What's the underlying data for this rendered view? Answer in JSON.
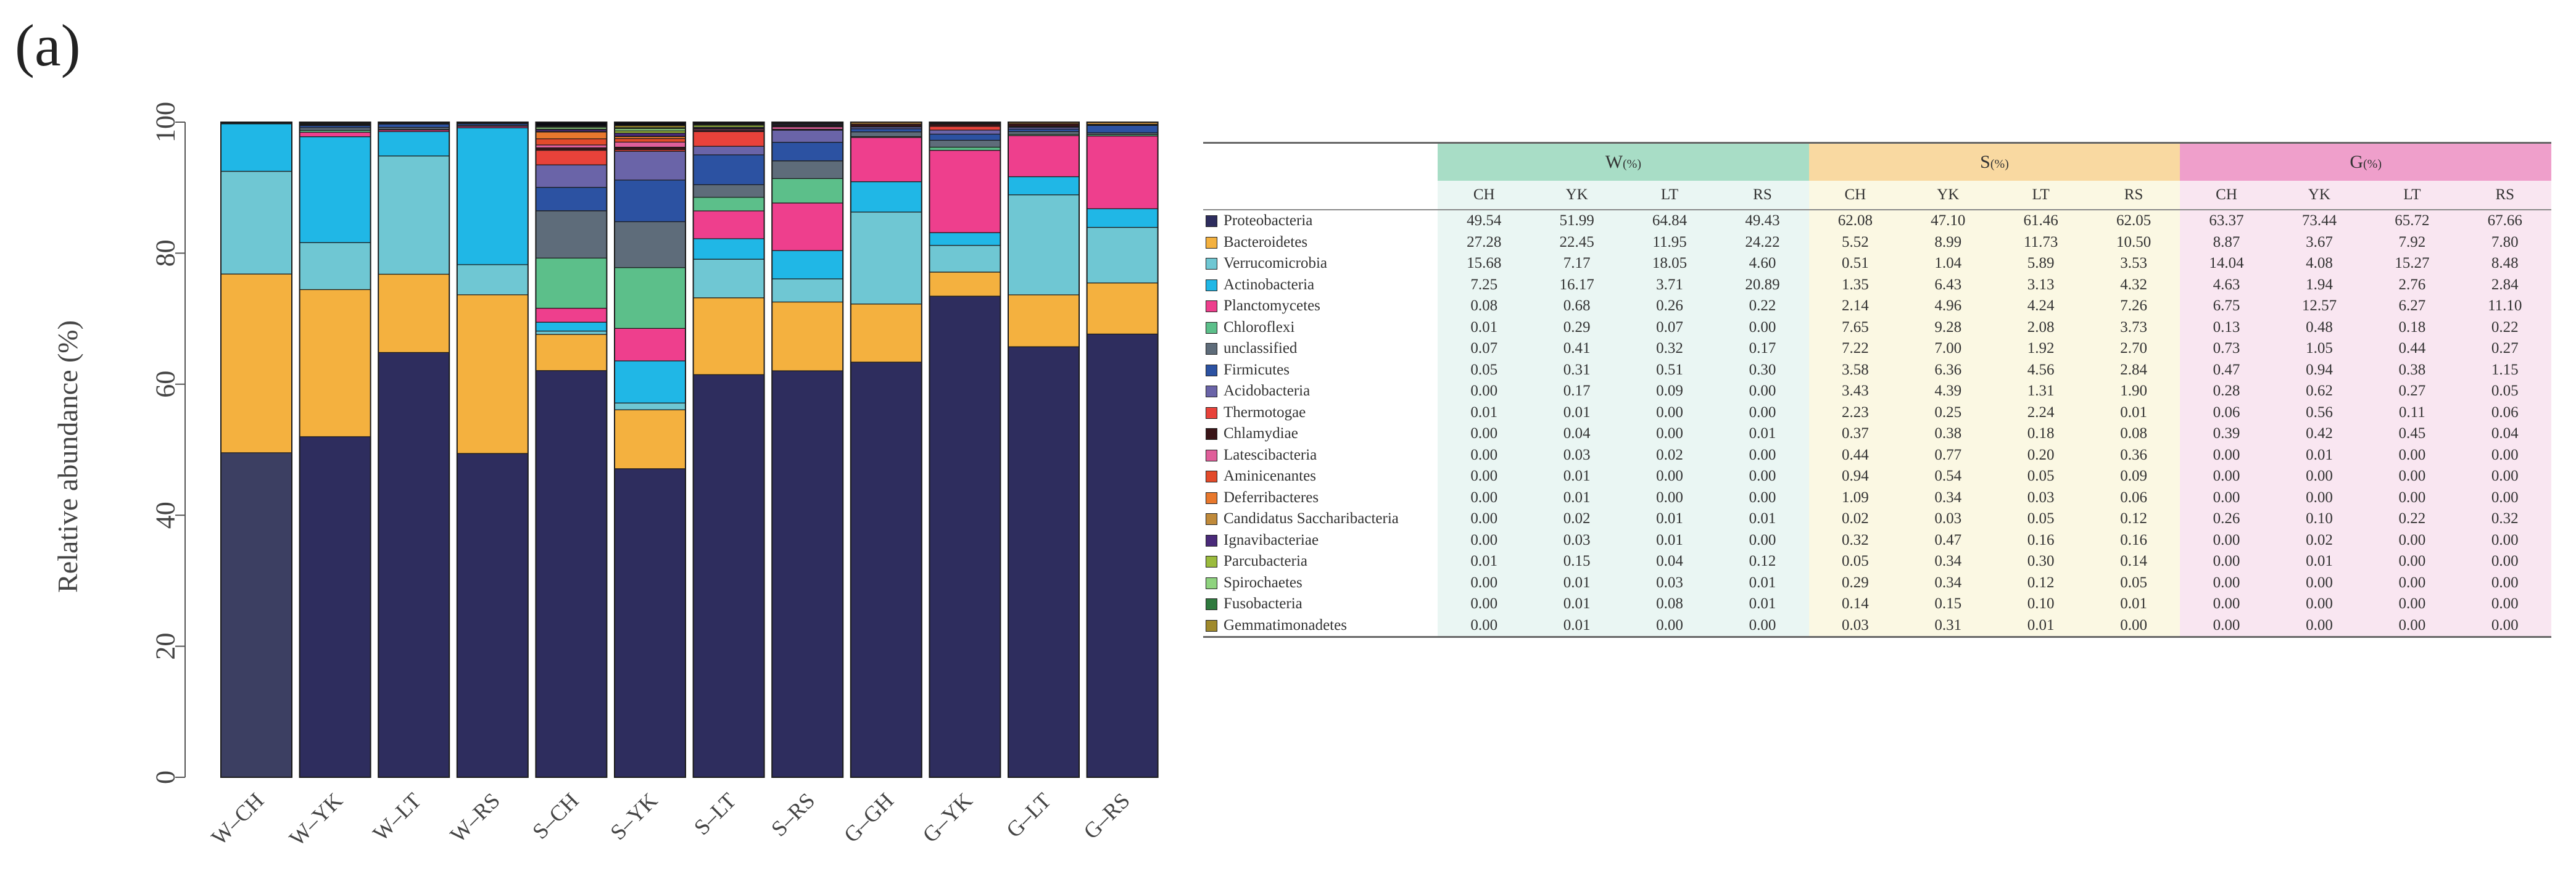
{
  "panel_label": "(a)",
  "chart_data": {
    "type": "bar",
    "stacked": true,
    "title": "",
    "xlabel": "",
    "ylabel": "Relative abundance (%)",
    "ylim": [
      0,
      100
    ],
    "yticks": [
      "0",
      "20",
      "40",
      "60",
      "80",
      "100"
    ],
    "categories": [
      "W–CH",
      "W–YK",
      "W–LT",
      "W–RS",
      "S–CH",
      "S–YK",
      "S–LT",
      "S–RS",
      "G–GH",
      "G–YK",
      "G–LT",
      "G–RS"
    ],
    "first_bar_base_color": "#3c3f62",
    "series": [
      {
        "name": "Proteobacteria",
        "color": "#2e2d5e",
        "values": [
          49.54,
          51.99,
          64.84,
          49.43,
          62.08,
          47.1,
          61.46,
          62.05,
          63.37,
          73.44,
          65.72,
          67.66
        ]
      },
      {
        "name": "Bacteroidetes",
        "color": "#f4b13f",
        "values": [
          27.28,
          22.45,
          11.95,
          24.22,
          5.52,
          8.99,
          11.73,
          10.5,
          8.87,
          3.67,
          7.92,
          7.8
        ]
      },
      {
        "name": "Verrucomicrobia",
        "color": "#6fc7d3",
        "values": [
          15.68,
          7.17,
          18.05,
          4.6,
          0.51,
          1.04,
          5.89,
          3.53,
          14.04,
          4.08,
          15.27,
          8.48
        ]
      },
      {
        "name": "Actinobacteria",
        "color": "#20b7e6",
        "values": [
          7.25,
          16.17,
          3.71,
          20.89,
          1.35,
          6.43,
          3.13,
          4.32,
          4.63,
          1.94,
          2.76,
          2.84
        ]
      },
      {
        "name": "Planctomycetes",
        "color": "#ee3f8d",
        "values": [
          0.08,
          0.68,
          0.26,
          0.22,
          2.14,
          4.96,
          4.24,
          7.26,
          6.75,
          12.57,
          6.27,
          11.1
        ]
      },
      {
        "name": "Chloroflexi",
        "color": "#5cbf8a",
        "values": [
          0.01,
          0.29,
          0.07,
          0.0,
          7.65,
          9.28,
          2.08,
          3.73,
          0.13,
          0.48,
          0.18,
          0.22
        ]
      },
      {
        "name": "unclassified",
        "color": "#5e6c7a",
        "values": [
          0.07,
          0.41,
          0.32,
          0.17,
          7.22,
          7.0,
          1.92,
          2.7,
          0.73,
          1.05,
          0.44,
          0.27
        ]
      },
      {
        "name": "Firmicutes",
        "color": "#2c52a2",
        "values": [
          0.05,
          0.31,
          0.51,
          0.3,
          3.58,
          6.36,
          4.56,
          2.84,
          0.47,
          0.94,
          0.38,
          1.15
        ]
      },
      {
        "name": "Acidobacteria",
        "color": "#6a64a8",
        "values": [
          0.0,
          0.17,
          0.09,
          0.0,
          3.43,
          4.39,
          1.31,
          1.9,
          0.28,
          0.62,
          0.27,
          0.05
        ]
      },
      {
        "name": "Thermotogae",
        "color": "#e8423a",
        "values": [
          0.01,
          0.01,
          0.0,
          0.0,
          2.23,
          0.25,
          2.24,
          0.01,
          0.06,
          0.56,
          0.11,
          0.06
        ]
      },
      {
        "name": "Chlamydiae",
        "color": "#3a1518",
        "values": [
          0.0,
          0.04,
          0.0,
          0.01,
          0.37,
          0.38,
          0.18,
          0.08,
          0.39,
          0.42,
          0.45,
          0.04
        ]
      },
      {
        "name": "Latescibacteria",
        "color": "#e05f9a",
        "values": [
          0.0,
          0.03,
          0.02,
          0.0,
          0.44,
          0.77,
          0.2,
          0.36,
          0.0,
          0.01,
          0.0,
          0.0
        ]
      },
      {
        "name": "Aminicenantes",
        "color": "#e34b2b",
        "values": [
          0.0,
          0.01,
          0.0,
          0.0,
          0.94,
          0.54,
          0.05,
          0.09,
          0.0,
          0.0,
          0.0,
          0.0
        ]
      },
      {
        "name": "Deferribacteres",
        "color": "#e8782d",
        "values": [
          0.0,
          0.01,
          0.0,
          0.0,
          1.09,
          0.34,
          0.03,
          0.06,
          0.0,
          0.0,
          0.0,
          0.0
        ]
      },
      {
        "name": "Candidatus Saccharibacteria",
        "color": "#c08a3a",
        "values": [
          0.0,
          0.02,
          0.01,
          0.01,
          0.02,
          0.03,
          0.05,
          0.12,
          0.26,
          0.1,
          0.22,
          0.32
        ]
      },
      {
        "name": "Ignavibacteriae",
        "color": "#4a2a7a",
        "values": [
          0.0,
          0.03,
          0.01,
          0.0,
          0.32,
          0.47,
          0.16,
          0.16,
          0.0,
          0.02,
          0.0,
          0.0
        ]
      },
      {
        "name": "Parcubacteria",
        "color": "#9bbb3d",
        "values": [
          0.01,
          0.15,
          0.04,
          0.12,
          0.05,
          0.34,
          0.3,
          0.14,
          0.0,
          0.01,
          0.0,
          0.0
        ]
      },
      {
        "name": "Spirochaetes",
        "color": "#8fd37f",
        "values": [
          0.0,
          0.01,
          0.03,
          0.01,
          0.29,
          0.34,
          0.12,
          0.05,
          0.0,
          0.0,
          0.0,
          0.0
        ]
      },
      {
        "name": "Fusobacteria",
        "color": "#2f7a3e",
        "values": [
          0.0,
          0.01,
          0.08,
          0.01,
          0.14,
          0.15,
          0.1,
          0.01,
          0.0,
          0.0,
          0.0,
          0.0
        ]
      },
      {
        "name": "Gemmatimonadetes",
        "color": "#a08a2c",
        "values": [
          0.0,
          0.01,
          0.0,
          0.0,
          0.03,
          0.31,
          0.01,
          0.0,
          0.0,
          0.0,
          0.0,
          0.0
        ]
      }
    ],
    "remainder_color": "#0b0b12"
  },
  "table": {
    "groups": [
      {
        "label": "W",
        "unit": "(%)",
        "key": "w"
      },
      {
        "label": "S",
        "unit": "(%)",
        "key": "s"
      },
      {
        "label": "G",
        "unit": "(%)",
        "key": "g"
      }
    ],
    "columns": [
      "CH",
      "YK",
      "LT",
      "RS",
      "CH",
      "YK",
      "LT",
      "RS",
      "CH",
      "YK",
      "LT",
      "RS"
    ],
    "rows": [
      {
        "name": "Proteobacteria",
        "values": [
          "49.54",
          "51.99",
          "64.84",
          "49.43",
          "62.08",
          "47.10",
          "61.46",
          "62.05",
          "63.37",
          "73.44",
          "65.72",
          "67.66"
        ]
      },
      {
        "name": "Bacteroidetes",
        "values": [
          "27.28",
          "22.45",
          "11.95",
          "24.22",
          "5.52",
          "8.99",
          "11.73",
          "10.50",
          "8.87",
          "3.67",
          "7.92",
          "7.80"
        ]
      },
      {
        "name": "Verrucomicrobia",
        "values": [
          "15.68",
          "7.17",
          "18.05",
          "4.60",
          "0.51",
          "1.04",
          "5.89",
          "3.53",
          "14.04",
          "4.08",
          "15.27",
          "8.48"
        ]
      },
      {
        "name": "Actinobacteria",
        "values": [
          "7.25",
          "16.17",
          "3.71",
          "20.89",
          "1.35",
          "6.43",
          "3.13",
          "4.32",
          "4.63",
          "1.94",
          "2.76",
          "2.84"
        ]
      },
      {
        "name": "Planctomycetes",
        "values": [
          "0.08",
          "0.68",
          "0.26",
          "0.22",
          "2.14",
          "4.96",
          "4.24",
          "7.26",
          "6.75",
          "12.57",
          "6.27",
          "11.10"
        ]
      },
      {
        "name": "Chloroflexi",
        "values": [
          "0.01",
          "0.29",
          "0.07",
          "0.00",
          "7.65",
          "9.28",
          "2.08",
          "3.73",
          "0.13",
          "0.48",
          "0.18",
          "0.22"
        ]
      },
      {
        "name": "unclassified",
        "values": [
          "0.07",
          "0.41",
          "0.32",
          "0.17",
          "7.22",
          "7.00",
          "1.92",
          "2.70",
          "0.73",
          "1.05",
          "0.44",
          "0.27"
        ]
      },
      {
        "name": "Firmicutes",
        "values": [
          "0.05",
          "0.31",
          "0.51",
          "0.30",
          "3.58",
          "6.36",
          "4.56",
          "2.84",
          "0.47",
          "0.94",
          "0.38",
          "1.15"
        ]
      },
      {
        "name": "Acidobacteria",
        "values": [
          "0.00",
          "0.17",
          "0.09",
          "0.00",
          "3.43",
          "4.39",
          "1.31",
          "1.90",
          "0.28",
          "0.62",
          "0.27",
          "0.05"
        ]
      },
      {
        "name": "Thermotogae",
        "values": [
          "0.01",
          "0.01",
          "0.00",
          "0.00",
          "2.23",
          "0.25",
          "2.24",
          "0.01",
          "0.06",
          "0.56",
          "0.11",
          "0.06"
        ]
      },
      {
        "name": "Chlamydiae",
        "values": [
          "0.00",
          "0.04",
          "0.00",
          "0.01",
          "0.37",
          "0.38",
          "0.18",
          "0.08",
          "0.39",
          "0.42",
          "0.45",
          "0.04"
        ]
      },
      {
        "name": "Latescibacteria",
        "values": [
          "0.00",
          "0.03",
          "0.02",
          "0.00",
          "0.44",
          "0.77",
          "0.20",
          "0.36",
          "0.00",
          "0.01",
          "0.00",
          "0.00"
        ]
      },
      {
        "name": "Aminicenantes",
        "values": [
          "0.00",
          "0.01",
          "0.00",
          "0.00",
          "0.94",
          "0.54",
          "0.05",
          "0.09",
          "0.00",
          "0.00",
          "0.00",
          "0.00"
        ]
      },
      {
        "name": "Deferribacteres",
        "values": [
          "0.00",
          "0.01",
          "0.00",
          "0.00",
          "1.09",
          "0.34",
          "0.03",
          "0.06",
          "0.00",
          "0.00",
          "0.00",
          "0.00"
        ]
      },
      {
        "name": "Candidatus Saccharibacteria",
        "values": [
          "0.00",
          "0.02",
          "0.01",
          "0.01",
          "0.02",
          "0.03",
          "0.05",
          "0.12",
          "0.26",
          "0.10",
          "0.22",
          "0.32"
        ]
      },
      {
        "name": "Ignavibacteriae",
        "values": [
          "0.00",
          "0.03",
          "0.01",
          "0.00",
          "0.32",
          "0.47",
          "0.16",
          "0.16",
          "0.00",
          "0.02",
          "0.00",
          "0.00"
        ]
      },
      {
        "name": "Parcubacteria",
        "values": [
          "0.01",
          "0.15",
          "0.04",
          "0.12",
          "0.05",
          "0.34",
          "0.30",
          "0.14",
          "0.00",
          "0.01",
          "0.00",
          "0.00"
        ]
      },
      {
        "name": "Spirochaetes",
        "values": [
          "0.00",
          "0.01",
          "0.03",
          "0.01",
          "0.29",
          "0.34",
          "0.12",
          "0.05",
          "0.00",
          "0.00",
          "0.00",
          "0.00"
        ]
      },
      {
        "name": "Fusobacteria",
        "values": [
          "0.00",
          "0.01",
          "0.08",
          "0.01",
          "0.14",
          "0.15",
          "0.10",
          "0.01",
          "0.00",
          "0.00",
          "0.00",
          "0.00"
        ]
      },
      {
        "name": "Gemmatimonadetes",
        "values": [
          "0.00",
          "0.01",
          "0.00",
          "0.00",
          "0.03",
          "0.31",
          "0.01",
          "0.00",
          "0.00",
          "0.00",
          "0.00",
          "0.00"
        ]
      }
    ]
  }
}
